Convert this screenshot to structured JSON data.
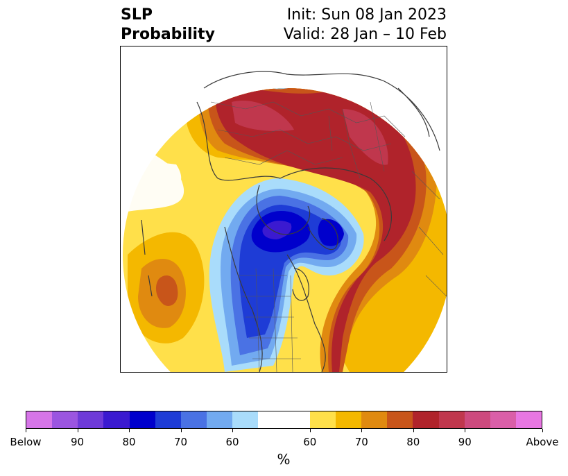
{
  "title": {
    "variable": "SLP",
    "subtitle": "Probability",
    "init": "Init: Sun 08 Jan 2023",
    "valid": "Valid: 28 Jan – 10 Feb"
  },
  "colorbar": {
    "unit": "%",
    "labels": [
      "Below",
      "90",
      "80",
      "70",
      "60",
      "60",
      "70",
      "80",
      "90",
      "Above"
    ],
    "colors": [
      "#d675e8",
      "#9b55e0",
      "#6e3ad8",
      "#3b1ad0",
      "#0000cc",
      "#1e3cd6",
      "#4a72e4",
      "#72aaf0",
      "#a9dcfb",
      "#ffffff",
      "#ffffff",
      "#ffe04a",
      "#f4b800",
      "#e08a10",
      "#c8551a",
      "#b0232b",
      "#c0374d",
      "#cd4a7e",
      "#da5fa8",
      "#e877e2"
    ]
  },
  "map": {
    "projection": "north-polar-stereographic",
    "features": [
      "country-borders",
      "us-state-borders",
      "coastlines"
    ]
  }
}
